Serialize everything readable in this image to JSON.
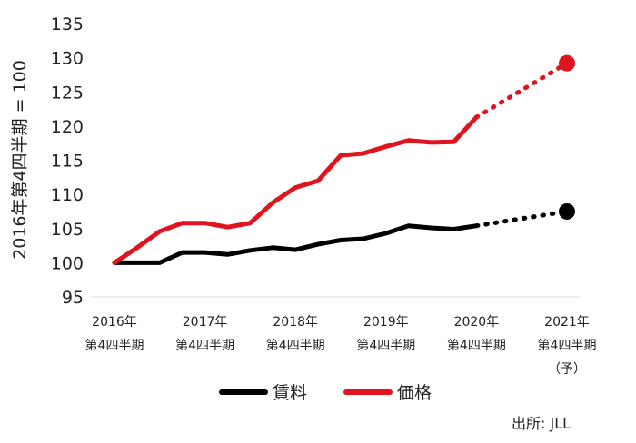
{
  "chart_data": {
    "type": "line",
    "ylabel": "2016年第4四半期 = 100",
    "ylim": [
      95,
      135
    ],
    "yticks": [
      95,
      100,
      105,
      110,
      115,
      120,
      125,
      130,
      135
    ],
    "x_tick_labels": [
      {
        "lines": [
          "2016年",
          "第4四半期"
        ],
        "index": 0
      },
      {
        "lines": [
          "2017年",
          "第4四半期"
        ],
        "index": 4
      },
      {
        "lines": [
          "2018年",
          "第4四半期"
        ],
        "index": 8
      },
      {
        "lines": [
          "2019年",
          "第4四半期"
        ],
        "index": 12
      },
      {
        "lines": [
          "2020年",
          "第4四半期"
        ],
        "index": 16
      },
      {
        "lines": [
          "2021年",
          "第4四半期",
          "（予）"
        ],
        "index": 20
      }
    ],
    "grid": false,
    "legend_position": "bottom",
    "series": [
      {
        "name": "賃料",
        "color": "#000000",
        "values": [
          100,
          100,
          100,
          101.5,
          101.5,
          101.2,
          101.8,
          102.2,
          101.9,
          102.7,
          103.3,
          103.5,
          104.3,
          105.4,
          105.1,
          104.9,
          105.4
        ],
        "forecast": {
          "values": [
            105.4,
            107.5
          ],
          "indices": [
            16,
            20
          ]
        }
      },
      {
        "name": "価格",
        "color": "#e0141e",
        "values": [
          100,
          102.2,
          104.6,
          105.8,
          105.8,
          105.2,
          105.8,
          108.8,
          111.0,
          112.0,
          115.7,
          116.0,
          117.0,
          117.9,
          117.6,
          117.7,
          121.3
        ],
        "forecast": {
          "values": [
            121.3,
            129.2
          ],
          "indices": [
            16,
            20
          ]
        }
      }
    ]
  },
  "source_label": "出所: JLL"
}
